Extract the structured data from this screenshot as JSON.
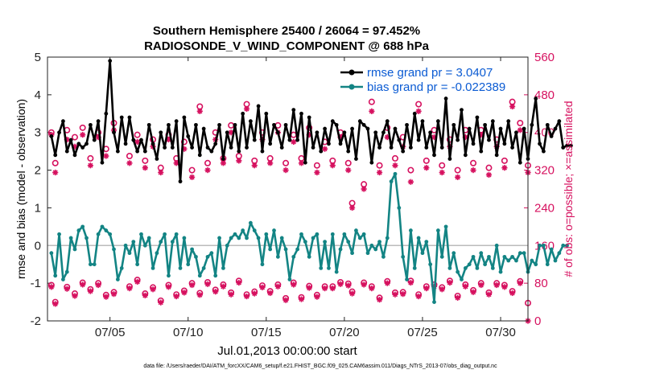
{
  "colors": {
    "rmse": "#000000",
    "bias": "#138484",
    "obs": "#d6115f",
    "zero_line": "#bbbbbb",
    "legend_text": "#0b5bd3"
  },
  "chart_data": {
    "type": "line",
    "title": "Southern Hemisphere 25400 / 26064 = 97.452%",
    "subtitle": "RADIOSONDE_V_WIND_COMPONENT @ 688 hPa",
    "xlabel": "Jul.01,2013 00:00:00 start",
    "ylabel_left": "rmse and bias (model - observation)",
    "ylabel_right": "# of obs: o=possible; ×=assimilated",
    "x_ticks": [
      "07/05",
      "07/10",
      "07/15",
      "07/20",
      "07/25",
      "07/30"
    ],
    "x_tick_days": [
      5,
      10,
      15,
      20,
      25,
      30
    ],
    "xlim": [
      1.0,
      31.75
    ],
    "ylim_left": [
      -2,
      5
    ],
    "yticks_left": [
      "-2",
      "-1",
      "0",
      "1",
      "2",
      "3",
      "4",
      "5"
    ],
    "ylim_right": [
      0,
      560
    ],
    "yticks_right": [
      "0",
      "80",
      "160",
      "240",
      "320",
      "400",
      "480",
      "560"
    ],
    "legend": [
      "rmse grand pr = 3.0407",
      "bias grand pr = -0.022389"
    ],
    "legend_position": "top-right",
    "x_start_day": 1.25,
    "x_step_days": 0.25,
    "series": [
      {
        "name": "rmse",
        "values": [
          2.9,
          2.4,
          3.0,
          3.3,
          2.5,
          2.8,
          2.4,
          2.7,
          2.6,
          2.7,
          3.2,
          2.8,
          3.3,
          2.2,
          3.5,
          4.9,
          3.0,
          2.5,
          3.4,
          2.7,
          3.4,
          2.8,
          2.5,
          2.8,
          2.5,
          3.2,
          2.7,
          2.3,
          3.0,
          2.6,
          3.2,
          2.6,
          3.3,
          1.7,
          3.4,
          2.9,
          2.6,
          3.2,
          2.4,
          3.1,
          2.6,
          2.5,
          2.7,
          3.2,
          2.3,
          3.0,
          2.6,
          3.2,
          2.5,
          3.5,
          2.6,
          3.3,
          2.8,
          3.7,
          2.5,
          3.5,
          2.7,
          3.2,
          3.0,
          2.6,
          3.2,
          2.8,
          3.6,
          2.8,
          3.5,
          2.2,
          3.4,
          2.6,
          3.0,
          2.5,
          3.1,
          2.7,
          3.3,
          3.2,
          2.7,
          3.0,
          2.5,
          3.1,
          2.3,
          3.3,
          3.2,
          3.1,
          2.2,
          3.0,
          2.6,
          3.0,
          3.3,
          2.6,
          3.1,
          2.8,
          2.5,
          3.2,
          2.6,
          3.5,
          2.8,
          3.3,
          2.6,
          3.0,
          2.4,
          3.3,
          2.6,
          3.9,
          2.3,
          3.2,
          2.8,
          3.6,
          2.4,
          3.1,
          2.7,
          3.4,
          2.5,
          3.2,
          2.8,
          3.3,
          2.4,
          3.1,
          2.7,
          3.3,
          2.6,
          3.0,
          2.2,
          3.1,
          2.3,
          3.2,
          3.9,
          2.7,
          2.5,
          3.2,
          2.9,
          3.1,
          3.3,
          2.6,
          2.65,
          2.65
        ],
        "color": "#000000"
      },
      {
        "name": "bias",
        "values": [
          -0.2,
          -0.8,
          0.3,
          -0.9,
          -0.7,
          0.2,
          -0.1,
          0.4,
          0.5,
          0.2,
          -0.5,
          -0.5,
          0.3,
          0.5,
          0.4,
          0.3,
          -0.1,
          -0.9,
          -0.6,
          0.0,
          -0.2,
          0.1,
          -0.5,
          0.3,
          0.0,
          0.2,
          -0.6,
          -0.2,
          0.1,
          0.3,
          -0.8,
          0.1,
          0.3,
          -0.6,
          0.2,
          -0.5,
          -0.1,
          -0.3,
          -0.8,
          -0.6,
          -0.3,
          -0.2,
          -0.8,
          0.2,
          -0.6,
          0.0,
          0.2,
          0.3,
          0.2,
          0.4,
          0.2,
          0.6,
          0.4,
          0.2,
          -0.5,
          0.3,
          -0.1,
          0.4,
          -0.3,
          0.2,
          -0.1,
          -0.9,
          -0.3,
          -0.1,
          0.3,
          0.1,
          -0.3,
          0.2,
          0.3,
          -0.6,
          0.1,
          -0.6,
          0.3,
          -0.7,
          -0.1,
          0.3,
          0.1,
          -0.2,
          0.4,
          0.2,
          0.3,
          -0.2,
          0.0,
          -0.1,
          0.1,
          -0.3,
          0.2,
          1.7,
          1.9,
          1.0,
          -0.3,
          -0.9,
          0.4,
          -0.6,
          0.2,
          -0.2,
          0.1,
          -0.5,
          -1.5,
          0.4,
          -0.3,
          0.5,
          -0.6,
          -0.2,
          -0.7,
          -0.9,
          -0.6,
          -0.5,
          -0.3,
          -0.6,
          -0.2,
          -0.5,
          -0.3,
          -0.6,
          0.0,
          -0.7,
          -0.3,
          -0.4,
          -0.3,
          -0.4,
          -0.2,
          -0.2,
          -0.7,
          -0.4,
          -0.5,
          0.0,
          0.0,
          -0.5,
          -0.1,
          -0.4,
          -0.2,
          0.0,
          0.0
        ],
        "color": "#138484"
      }
    ],
    "obs_days": [
      1.25,
      1.5,
      2.25,
      2.75,
      3.25,
      3.75,
      4.25,
      4.75,
      5.25,
      6.25,
      6.75,
      7.25,
      7.75,
      8.25,
      8.75,
      9.25,
      9.75,
      10.25,
      10.75,
      11.25,
      11.75,
      12.25,
      12.75,
      13.25,
      13.75,
      14.25,
      14.75,
      15.25,
      15.75,
      16.25,
      16.75,
      17.25,
      17.75,
      18.25,
      18.75,
      19.25,
      19.75,
      20.25,
      20.5,
      21.25,
      21.75,
      22.25,
      22.75,
      23.25,
      23.75,
      24.25,
      24.75,
      25.25,
      25.75,
      26.25,
      26.75,
      27.25,
      27.75,
      28.25,
      28.75,
      29.25,
      29.75,
      30.25,
      30.75,
      31.25,
      31.75
    ],
    "obs_possible": [
      400,
      335,
      405,
      390,
      410,
      345,
      400,
      365,
      420,
      350,
      395,
      340,
      385,
      325,
      395,
      345,
      380,
      320,
      455,
      335,
      400,
      345,
      415,
      350,
      460,
      340,
      400,
      345,
      415,
      335,
      395,
      345,
      410,
      330,
      380,
      340,
      400,
      335,
      250,
      290,
      465,
      330,
      410,
      345,
      390,
      320,
      460,
      340,
      405,
      330,
      385,
      320,
      405,
      335,
      405,
      325,
      385,
      340,
      465,
      420,
      330
    ],
    "obs_assimilated": [
      395,
      315,
      385,
      370,
      395,
      330,
      390,
      350,
      405,
      335,
      380,
      325,
      370,
      315,
      385,
      335,
      365,
      305,
      445,
      320,
      385,
      335,
      400,
      340,
      450,
      330,
      385,
      335,
      400,
      320,
      380,
      335,
      395,
      315,
      365,
      330,
      390,
      320,
      240,
      280,
      445,
      315,
      390,
      330,
      370,
      295,
      445,
      325,
      390,
      315,
      370,
      305,
      390,
      320,
      395,
      310,
      370,
      325,
      455,
      405,
      315
    ],
    "obs_low_possible": [
      76,
      40,
      72,
      58,
      81,
      67,
      80,
      55,
      61,
      73,
      87,
      58,
      71,
      43,
      76,
      56,
      64,
      80,
      59,
      82,
      66,
      77,
      60,
      85,
      56,
      62,
      75,
      63,
      77,
      48,
      81,
      50,
      74,
      55,
      73,
      73,
      82,
      79,
      62,
      81,
      73,
      49,
      84,
      60,
      61,
      85,
      56,
      73,
      77,
      71,
      85,
      53,
      77,
      65,
      80,
      60,
      80,
      76,
      63,
      84,
      38
    ],
    "obs_low_assimilated": [
      72,
      36,
      68,
      53,
      77,
      63,
      76,
      51,
      57,
      69,
      83,
      54,
      67,
      39,
      72,
      52,
      60,
      76,
      55,
      78,
      62,
      73,
      56,
      81,
      52,
      58,
      71,
      59,
      73,
      44,
      77,
      46,
      70,
      51,
      69,
      69,
      78,
      75,
      58,
      77,
      69,
      45,
      80,
      56,
      57,
      81,
      52,
      69,
      73,
      67,
      81,
      49,
      73,
      61,
      76,
      56,
      76,
      72,
      59,
      80,
      0
    ]
  },
  "footer": "data file: /Users/raeder/DAI/ATM_forcXX/CAM6_setup/f.e21.FHIST_BGC.f09_025.CAM6assim.011/Diags_NTrS_2013-07/obs_diag_output.nc"
}
